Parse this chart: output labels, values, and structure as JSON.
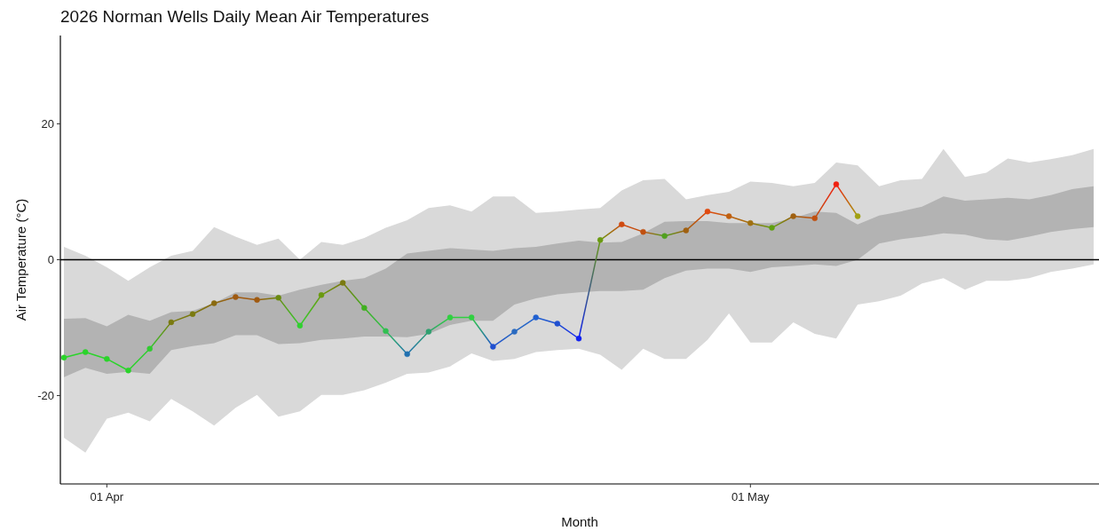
{
  "chart_data": {
    "type": "line",
    "title": "2026 Norman Wells Daily Mean Air Temperatures",
    "xlabel": "Month",
    "ylabel": "Air Temperature (°C)",
    "x": [
      "2026-03-30",
      "2026-03-31",
      "2026-04-01",
      "2026-04-02",
      "2026-04-03",
      "2026-04-04",
      "2026-04-05",
      "2026-04-06",
      "2026-04-07",
      "2026-04-08",
      "2026-04-09",
      "2026-04-10",
      "2026-04-11",
      "2026-04-12",
      "2026-04-13",
      "2026-04-14",
      "2026-04-15",
      "2026-04-16",
      "2026-04-17",
      "2026-04-18",
      "2026-04-19",
      "2026-04-20",
      "2026-04-21",
      "2026-04-22",
      "2026-04-23",
      "2026-04-24",
      "2026-04-25",
      "2026-04-26",
      "2026-04-27",
      "2026-04-28",
      "2026-04-29",
      "2026-04-30",
      "2026-05-01",
      "2026-05-02",
      "2026-05-03",
      "2026-05-04",
      "2026-05-05",
      "2026-05-06",
      "2026-05-07",
      "2026-05-08",
      "2026-05-09",
      "2026-05-10",
      "2026-05-11",
      "2026-05-12",
      "2026-05-13",
      "2026-05-14",
      "2026-05-15",
      "2026-05-16",
      "2026-05-17"
    ],
    "xlim": [
      "2026-03-29T20:00",
      "2026-05-17T06:00"
    ],
    "xticks": [
      {
        "value": "2026-04-01",
        "label": "01 Apr"
      },
      {
        "value": "2026-05-01",
        "label": "01 May"
      }
    ],
    "ylim": [
      -33,
      33
    ],
    "yticks": [
      -20,
      0,
      20
    ],
    "grid": false,
    "ref_lines": [
      {
        "axis": "y",
        "value": 0,
        "color": "#000000"
      }
    ],
    "series": [
      {
        "color": "#d9d9d9",
        "values": [
          null,
          null,
          null,
          null,
          null,
          null,
          null,
          null,
          null,
          null,
          null,
          null,
          null,
          null,
          null,
          null,
          null,
          null,
          null,
          null,
          null,
          null,
          null,
          null,
          null,
          null,
          null,
          null,
          null,
          null,
          null,
          null,
          null,
          null,
          null,
          null,
          null,
          null,
          null,
          null,
          null,
          null,
          null,
          null,
          null,
          null,
          null,
          null,
          null
        ],
        "upper": [
          1.9,
          0.6,
          -1.1,
          -3.1,
          -1.1,
          0.6,
          1.3,
          4.8,
          3.4,
          2.2,
          3.1,
          0.0,
          2.6,
          2.2,
          3.2,
          4.7,
          5.8,
          7.6,
          8.0,
          7.1,
          9.3,
          9.3,
          6.9,
          7.1,
          7.4,
          7.6,
          10.2,
          11.7,
          11.9,
          8.9,
          9.5,
          10.0,
          11.5,
          11.3,
          10.8,
          11.3,
          14.3,
          13.9,
          10.8,
          11.7,
          11.9,
          16.3,
          12.2,
          12.8,
          14.9,
          14.3,
          14.8,
          15.4,
          16.3
        ],
        "lower": [
          -26.2,
          -28.4,
          -23.4,
          -22.5,
          -23.8,
          -20.5,
          -22.3,
          -24.4,
          -21.8,
          -19.9,
          -23.1,
          -22.3,
          -19.9,
          -19.9,
          -19.2,
          -18.1,
          -16.8,
          -16.6,
          -15.7,
          -13.8,
          -14.9,
          -14.6,
          -13.6,
          -13.3,
          -13.1,
          -14.0,
          -16.2,
          -13.1,
          -14.6,
          -14.6,
          -11.8,
          -7.9,
          -12.2,
          -12.2,
          -9.2,
          -10.9,
          -11.6,
          -6.6,
          -6.1,
          -5.3,
          -3.5,
          -2.7,
          -4.4,
          -3.1,
          -3.1,
          -2.7,
          -1.8,
          -1.3,
          -0.7
        ]
      },
      {
        "color": "#b3b3b3",
        "values": [
          null,
          null,
          null,
          null,
          null,
          null,
          null,
          null,
          null,
          null,
          null,
          null,
          null,
          null,
          null,
          null,
          null,
          null,
          null,
          null,
          null,
          null,
          null,
          null,
          null,
          null,
          null,
          null,
          null,
          null,
          null,
          null,
          null,
          null,
          null,
          null,
          null,
          null,
          null,
          null,
          null,
          null,
          null,
          null,
          null,
          null,
          null,
          null,
          null
        ],
        "upper": [
          -8.7,
          -8.6,
          -9.8,
          -8.1,
          -9.0,
          -7.7,
          -7.5,
          -6.4,
          -4.8,
          -4.8,
          -5.3,
          -4.4,
          -3.7,
          -3.1,
          -2.7,
          -1.3,
          0.9,
          1.3,
          1.7,
          1.5,
          1.3,
          1.7,
          1.9,
          2.4,
          2.8,
          2.5,
          2.6,
          3.9,
          5.6,
          5.7,
          5.7,
          5.4,
          5.4,
          5.4,
          6.1,
          7.1,
          6.9,
          5.2,
          6.5,
          7.1,
          7.8,
          9.3,
          8.7,
          8.9,
          9.1,
          8.9,
          9.5,
          10.4,
          10.8
        ],
        "lower": [
          -17.3,
          -15.9,
          -16.8,
          -16.5,
          -16.8,
          -13.3,
          -12.7,
          -12.3,
          -11.1,
          -11.1,
          -12.4,
          -12.3,
          -11.8,
          -11.6,
          -11.3,
          -11.3,
          -11.4,
          -10.9,
          -9.6,
          -9.0,
          -9.0,
          -6.6,
          -5.7,
          -5.1,
          -4.8,
          -4.6,
          -4.6,
          -4.4,
          -2.7,
          -1.6,
          -1.3,
          -1.3,
          -1.8,
          -1.1,
          -0.9,
          -0.7,
          -0.9,
          0.0,
          2.4,
          3.0,
          3.4,
          3.9,
          3.7,
          3.0,
          2.8,
          3.4,
          4.1,
          4.5,
          4.8
        ]
      },
      {
        "marker": "circle",
        "x": [
          "2026-03-30",
          "2026-03-31",
          "2026-04-01",
          "2026-04-02",
          "2026-04-03",
          "2026-04-04",
          "2026-04-05",
          "2026-04-06",
          "2026-04-07",
          "2026-04-08",
          "2026-04-09",
          "2026-04-10",
          "2026-04-11",
          "2026-04-12",
          "2026-04-13",
          "2026-04-14",
          "2026-04-15",
          "2026-04-16",
          "2026-04-17",
          "2026-04-18",
          "2026-04-19",
          "2026-04-20",
          "2026-04-21",
          "2026-04-22",
          "2026-04-23",
          "2026-04-24",
          "2026-04-25",
          "2026-04-26",
          "2026-04-27",
          "2026-04-28",
          "2026-04-29",
          "2026-04-30",
          "2026-05-01",
          "2026-05-02",
          "2026-05-03",
          "2026-05-04",
          "2026-05-05",
          "2026-05-06"
        ],
        "values": [
          -14.4,
          -13.6,
          -14.6,
          -16.3,
          -13.1,
          -9.2,
          -8.0,
          -6.4,
          -5.5,
          -5.9,
          -5.6,
          -9.7,
          -5.2,
          -3.4,
          -7.1,
          -10.5,
          -13.9,
          -10.6,
          -8.5,
          -8.5,
          -12.8,
          -10.6,
          -8.5,
          -9.4,
          -11.6,
          2.9,
          5.2,
          4.1,
          3.5,
          4.3,
          7.1,
          6.4,
          5.4,
          4.7,
          6.4,
          6.1,
          11.1,
          6.4
        ],
        "colors": [
          "#2ad42a",
          "#2ad42a",
          "#2ad42a",
          "#2ad42a",
          "#30cc30",
          "#7a7a10",
          "#7a7a10",
          "#8a6a10",
          "#a05a10",
          "#a05a10",
          "#6a8a10",
          "#30d030",
          "#6a9a10",
          "#7a7a10",
          "#40b020",
          "#30c050",
          "#2070b0",
          "#30a070",
          "#30d040",
          "#30d040",
          "#2050d0",
          "#2a6ac0",
          "#2060d0",
          "#2050d0",
          "#1020f0",
          "#6a9a10",
          "#d04a10",
          "#c05010",
          "#50a020",
          "#a06010",
          "#e04a10",
          "#c06010",
          "#a07010",
          "#60a010",
          "#a06010",
          "#c05010",
          "#f02010",
          "#a0a010"
        ]
      }
    ]
  }
}
